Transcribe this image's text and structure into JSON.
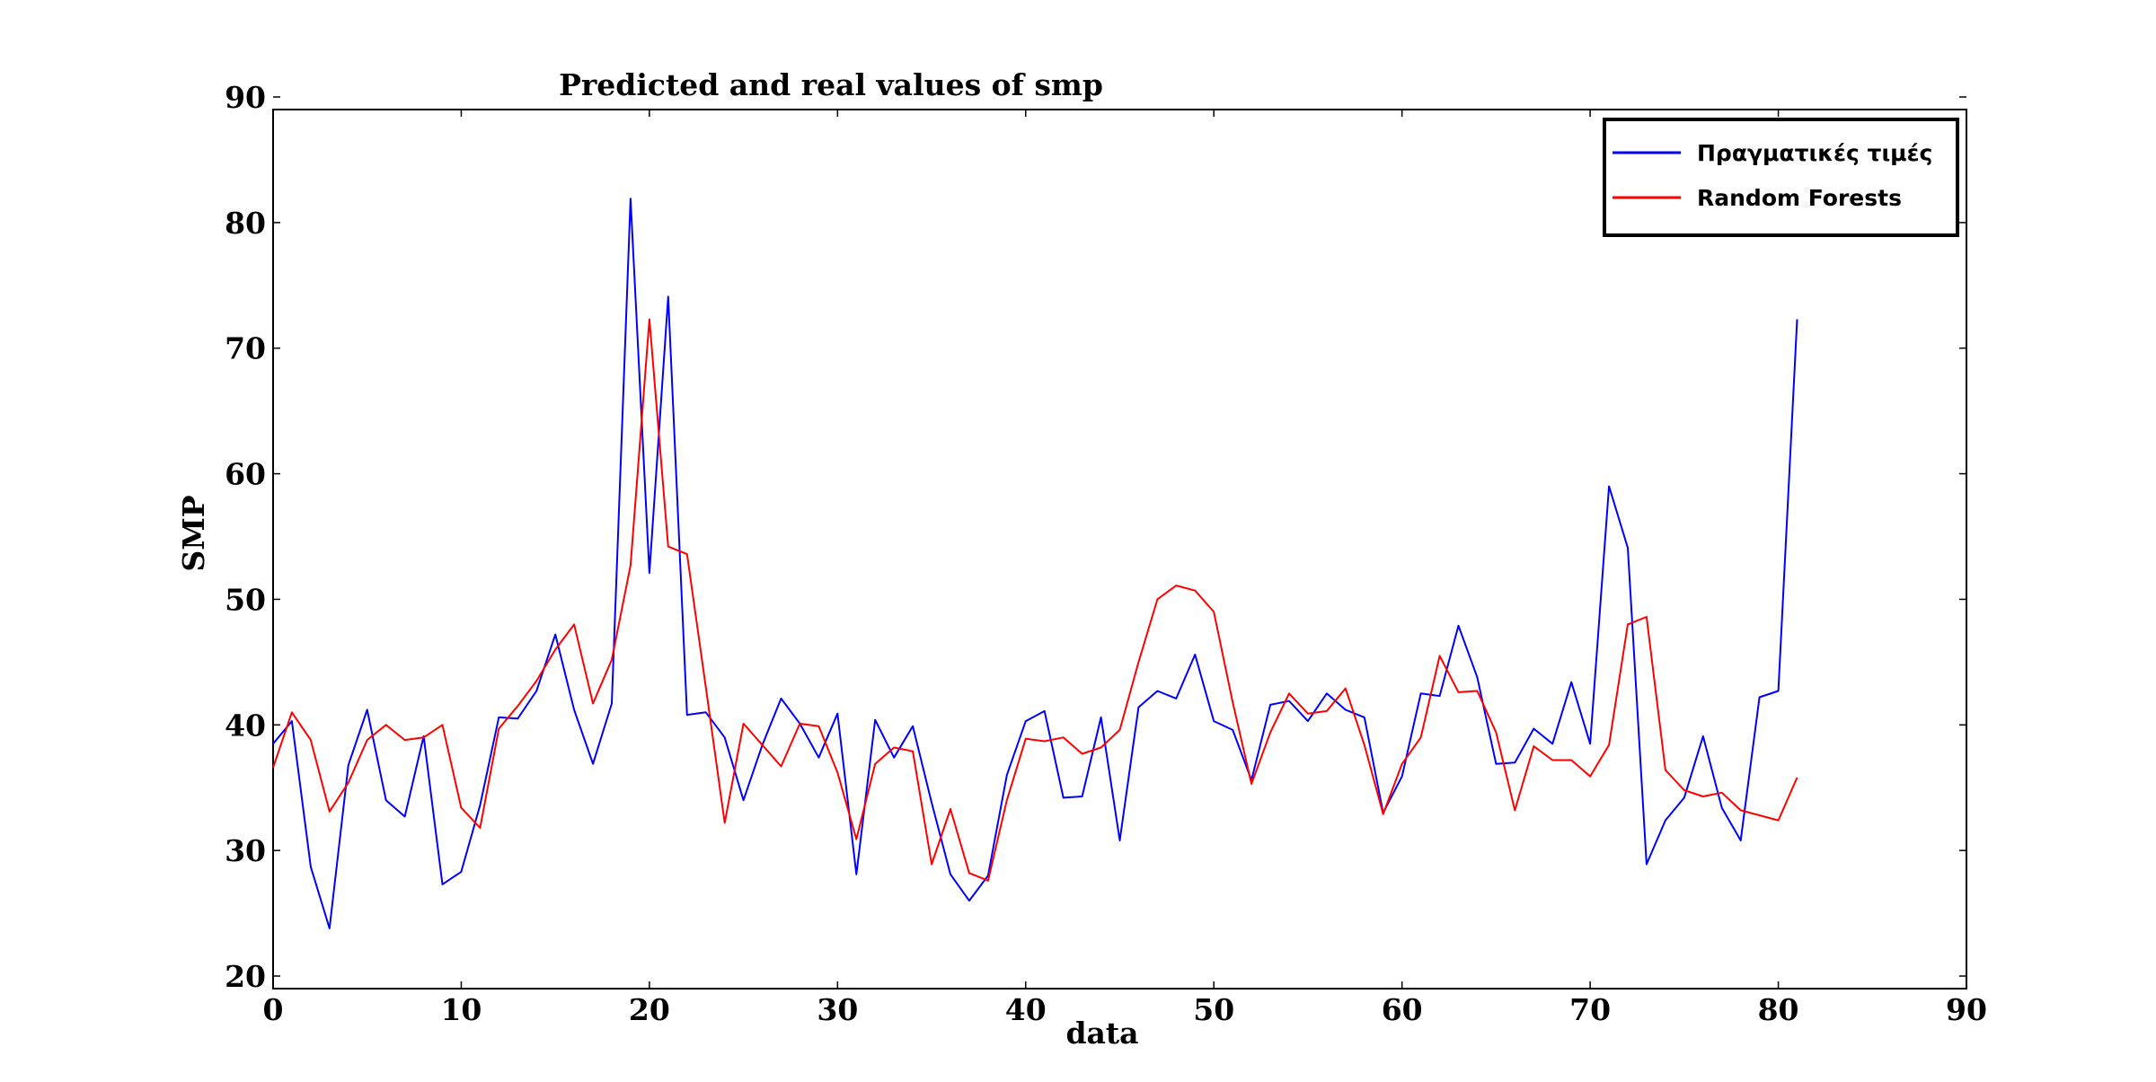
{
  "chart_data": {
    "type": "line",
    "title": "Predicted and real values of smp",
    "xlabel": "data",
    "ylabel": "SMP",
    "xlim": [
      0,
      90
    ],
    "ylim": [
      19,
      89
    ],
    "xticks": [
      0,
      10,
      20,
      30,
      40,
      50,
      60,
      70,
      80,
      90
    ],
    "yticks": [
      20,
      30,
      40,
      50,
      60,
      70,
      80,
      90
    ],
    "grid": false,
    "legend_position": "top-right",
    "series": [
      {
        "name": "Πραγματικές τιμές",
        "color": "#0000ff",
        "values": [
          38.5,
          40.3,
          28.7,
          23.8,
          36.8,
          41.2,
          34.0,
          32.7,
          39.1,
          27.3,
          28.3,
          33.6,
          40.6,
          40.5,
          42.7,
          47.2,
          41.2,
          36.9,
          41.7,
          81.9,
          52.1,
          74.1,
          40.8,
          41.0,
          39.0,
          34.0,
          38.4,
          42.1,
          40.1,
          37.4,
          40.9,
          28.1,
          40.4,
          37.4,
          39.9,
          33.8,
          28.1,
          26.0,
          28.0,
          36.0,
          40.3,
          41.1,
          34.2,
          34.3,
          40.6,
          30.8,
          41.4,
          42.7,
          42.1,
          45.6,
          40.3,
          39.6,
          35.6,
          41.6,
          41.9,
          40.3,
          42.5,
          41.2,
          40.6,
          33.0,
          35.9,
          42.5,
          42.3,
          47.9,
          43.8,
          36.9,
          37.0,
          39.7,
          38.5,
          43.4,
          38.5,
          59.0,
          54.1,
          28.9,
          32.4,
          34.2,
          39.1,
          33.4,
          30.8,
          42.2,
          42.7,
          72.3
        ]
      },
      {
        "name": "Random Forests",
        "color": "#ff0000",
        "values": [
          36.6,
          41.0,
          38.8,
          33.1,
          35.4,
          38.8,
          40.0,
          38.8,
          39.0,
          40.0,
          33.4,
          31.8,
          39.7,
          41.5,
          43.5,
          46.0,
          48.0,
          41.7,
          45.2,
          52.7,
          72.3,
          54.2,
          53.6,
          43.0,
          32.2,
          40.1,
          38.4,
          36.7,
          40.1,
          39.9,
          36.2,
          30.9,
          36.9,
          38.2,
          37.9,
          28.9,
          33.3,
          28.2,
          27.6,
          34.0,
          38.9,
          38.7,
          39.0,
          37.7,
          38.2,
          39.6,
          45.0,
          50.0,
          51.1,
          50.7,
          49.0,
          41.8,
          35.3,
          39.4,
          42.5,
          40.9,
          41.1,
          42.9,
          38.4,
          32.9,
          36.9,
          39.0,
          45.5,
          42.6,
          42.7,
          39.4,
          33.2,
          38.3,
          37.2,
          37.2,
          35.9,
          38.4,
          48.0,
          48.6,
          36.4,
          34.8,
          34.3,
          34.6,
          33.2,
          32.8,
          32.4,
          35.8
        ]
      }
    ]
  }
}
